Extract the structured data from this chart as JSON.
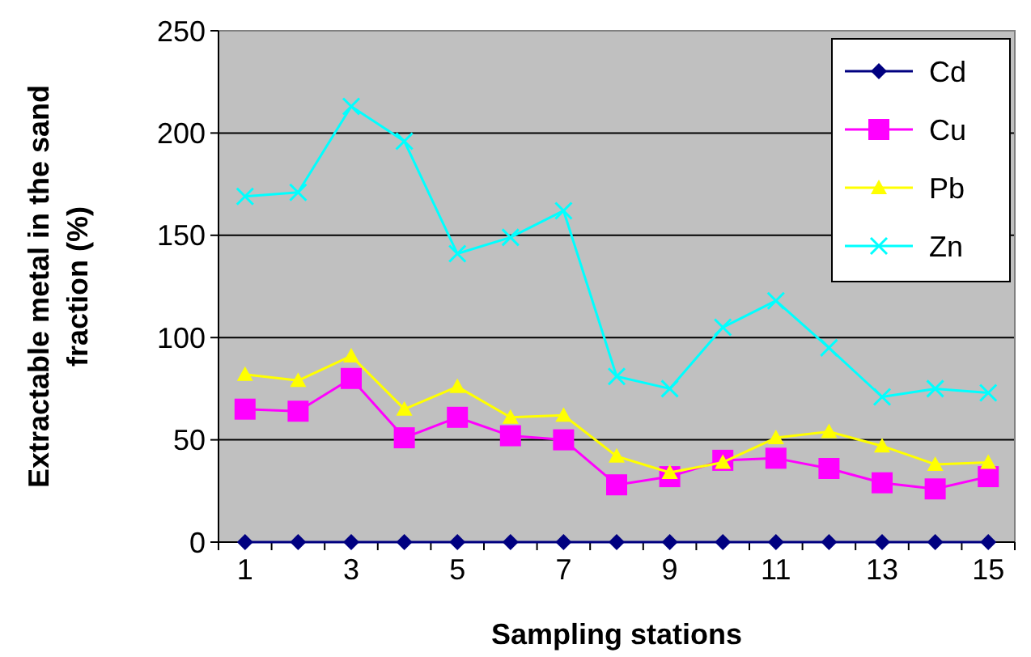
{
  "chart_data": {
    "type": "line",
    "xlabel": "Sampling stations",
    "ylabel": "Extractable metal in the sand fraction (%)",
    "x": [
      1,
      2,
      3,
      4,
      5,
      6,
      7,
      8,
      9,
      10,
      11,
      12,
      13,
      14,
      15
    ],
    "xlim": [
      0.5,
      15.5
    ],
    "xticks": [
      1,
      3,
      5,
      7,
      9,
      11,
      13,
      15,
      {
        "value": 0.5,
        "label": null
      },
      {
        "value": 1.5,
        "label": null
      },
      {
        "value": 2.5,
        "label": null
      },
      {
        "value": 3.5,
        "label": null
      },
      {
        "value": 4.5,
        "label": null
      },
      {
        "value": 5.5,
        "label": null
      },
      {
        "value": 6.5,
        "label": null
      },
      {
        "value": 7.5,
        "label": null
      },
      {
        "value": 8.5,
        "label": null
      },
      {
        "value": 9.5,
        "label": null
      },
      {
        "value": 10.5,
        "label": null
      },
      {
        "value": 11.5,
        "label": null
      },
      {
        "value": 12.5,
        "label": null
      },
      {
        "value": 13.5,
        "label": null
      },
      {
        "value": 14.5,
        "label": null
      },
      {
        "value": 15.5,
        "label": null
      }
    ],
    "ylim": [
      0,
      250
    ],
    "yticks": [
      0,
      50,
      100,
      150,
      200,
      250
    ],
    "grid": "y",
    "legend": "top right",
    "series": [
      {
        "name": "Cd",
        "color": "#000080",
        "marker": "diamond",
        "values": [
          0,
          0,
          0,
          0,
          0,
          0,
          0,
          0,
          0,
          0,
          0,
          0,
          0,
          0,
          0
        ]
      },
      {
        "name": "Cu",
        "color": "#ff00ff",
        "marker": "square",
        "values": [
          65,
          64,
          80,
          51,
          61,
          52,
          50,
          28,
          32,
          40,
          41,
          36,
          29,
          26,
          32
        ]
      },
      {
        "name": "Pb",
        "color": "#ffff00",
        "marker": "triangle",
        "values": [
          82,
          79,
          91,
          65,
          76,
          61,
          62,
          42,
          34,
          39,
          51,
          54,
          47,
          38,
          39
        ]
      },
      {
        "name": "Zn",
        "color": "#00ffff",
        "marker": "cross",
        "values": [
          169,
          171,
          213,
          196,
          141,
          149,
          162,
          81,
          75,
          105,
          118,
          95,
          71,
          75,
          73
        ]
      }
    ]
  }
}
